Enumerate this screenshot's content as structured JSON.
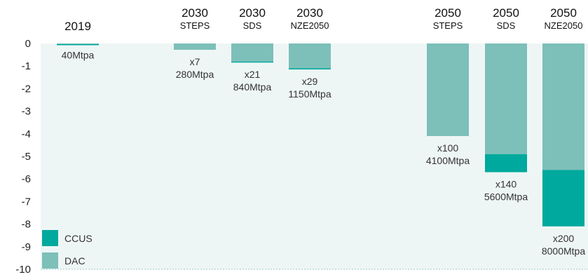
{
  "chart_data": {
    "type": "bar",
    "title": "",
    "xlabel": "",
    "ylabel": "",
    "ylim": [
      -10,
      0
    ],
    "yticks": [
      0,
      -1,
      -2,
      -3,
      -4,
      -5,
      -6,
      -7,
      -8,
      -9,
      -10
    ],
    "legend": [
      {
        "name": "CCUS",
        "color": "#00a99d"
      },
      {
        "name": "DAC",
        "color": "#7dbfb9"
      }
    ],
    "legend_position": "bottom-left",
    "categories": [
      {
        "year": "2019",
        "scenario": "",
        "mult": "",
        "total": "40Mtpa"
      },
      {
        "year": "2030",
        "scenario": "STEPS",
        "mult": "x7",
        "total": "280Mtpa"
      },
      {
        "year": "2030",
        "scenario": "SDS",
        "mult": "x21",
        "total": "840Mtpa"
      },
      {
        "year": "2030",
        "scenario": "NZE2050",
        "mult": "x29",
        "total": "1150Mtpa"
      },
      {
        "year": "2050",
        "scenario": "STEPS",
        "mult": "x100",
        "total": "4100Mtpa"
      },
      {
        "year": "2050",
        "scenario": "SDS",
        "mult": "x140",
        "total": "5600Mtpa"
      },
      {
        "year": "2050",
        "scenario": "NZE2050",
        "mult": "x200",
        "total": "8000Mtpa"
      }
    ],
    "series": [
      {
        "name": "DAC",
        "color": "#7dbfb9",
        "values": [
          -0.03,
          -0.28,
          -0.8,
          -1.1,
          -4.1,
          -4.9,
          -5.6
        ]
      },
      {
        "name": "CCUS",
        "color": "#00a99d",
        "values": [
          -0.01,
          0,
          -0.04,
          -0.05,
          0,
          -0.8,
          -2.5
        ]
      }
    ]
  }
}
